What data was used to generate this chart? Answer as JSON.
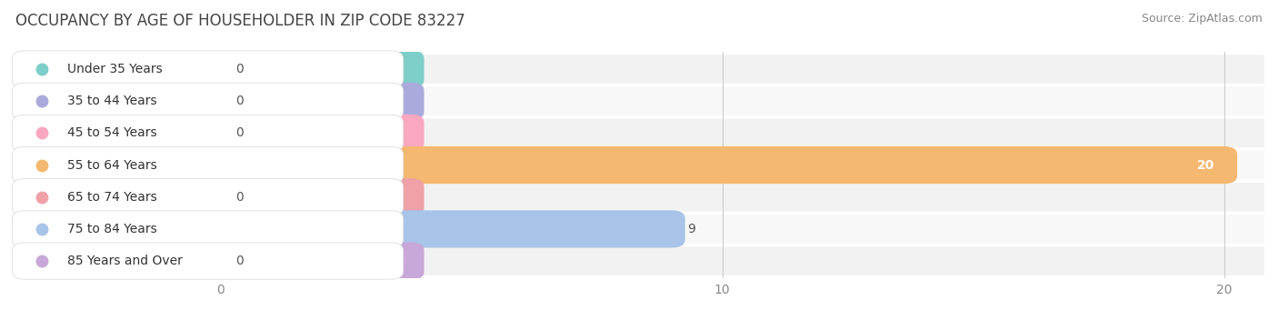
{
  "title": "OCCUPANCY BY AGE OF HOUSEHOLDER IN ZIP CODE 83227",
  "source": "Source: ZipAtlas.com",
  "categories": [
    "Under 35 Years",
    "35 to 44 Years",
    "45 to 54 Years",
    "55 to 64 Years",
    "65 to 74 Years",
    "75 to 84 Years",
    "85 Years and Over"
  ],
  "values": [
    0,
    0,
    0,
    20,
    0,
    9,
    0
  ],
  "bar_colors": [
    "#7ececa",
    "#aaaadd",
    "#f9a8c0",
    "#f5b870",
    "#f0a0a8",
    "#a8c4e8",
    "#c8a8d8"
  ],
  "xlim_max": 20,
  "xticks": [
    0,
    10,
    20
  ],
  "title_fontsize": 12,
  "source_fontsize": 9,
  "label_fontsize": 10,
  "value_fontsize": 10,
  "background_color": "#ffffff",
  "row_bg_even": "#f2f2f2",
  "row_bg_odd": "#f8f8f8",
  "grid_color": "#cccccc"
}
